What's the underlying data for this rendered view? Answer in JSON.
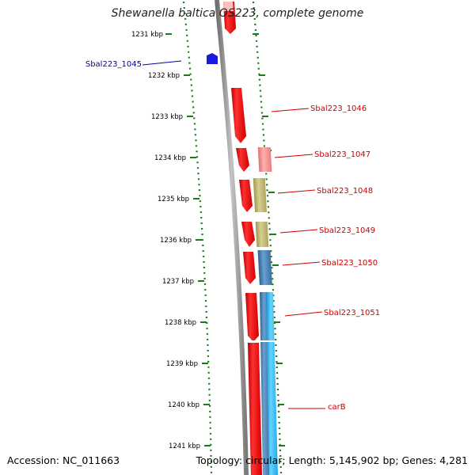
{
  "title": "Shewanella baltica OS223, complete genome",
  "accession": "Accession: NC_011663",
  "topology": "Topology: circular; Length: 5,145,902 bp; Genes: 4,281",
  "colors": {
    "ruler_dots": "#1a7a1a",
    "ruler_ticks": "#1a7a1a",
    "backbone": "#8a8a8a",
    "gene_forward": "#ee1111",
    "gene_forward_light": "#f08a8a",
    "gene_reverse": "#1a1adf",
    "match_olive": "#bdb76b",
    "match_steelblue": "#4682b4",
    "match_cyan": "#33bbee",
    "label_forward": "#cc0000",
    "label_reverse": "#0000aa"
  },
  "ruler_ticks": [
    {
      "label": "1231 kbp"
    },
    {
      "label": "1232 kbp"
    },
    {
      "label": "1233 kbp"
    },
    {
      "label": "1234 kbp"
    },
    {
      "label": "1235 kbp"
    },
    {
      "label": "1236 kbp"
    },
    {
      "label": "1237 kbp"
    },
    {
      "label": "1238 kbp"
    },
    {
      "label": "1239 kbp"
    },
    {
      "label": "1240 kbp"
    },
    {
      "label": "1241 kbp"
    }
  ],
  "gene_labels": [
    {
      "name": "Sbal223_1045",
      "strand": "reverse"
    },
    {
      "name": "Sbal223_1046",
      "strand": "forward"
    },
    {
      "name": "Sbal223_1047",
      "strand": "forward"
    },
    {
      "name": "Sbal223_1048",
      "strand": "forward"
    },
    {
      "name": "Sbal223_1049",
      "strand": "forward"
    },
    {
      "name": "Sbal223_1050",
      "strand": "forward"
    },
    {
      "name": "Sbal223_1051",
      "strand": "forward"
    },
    {
      "name": "carB",
      "strand": "forward"
    }
  ]
}
